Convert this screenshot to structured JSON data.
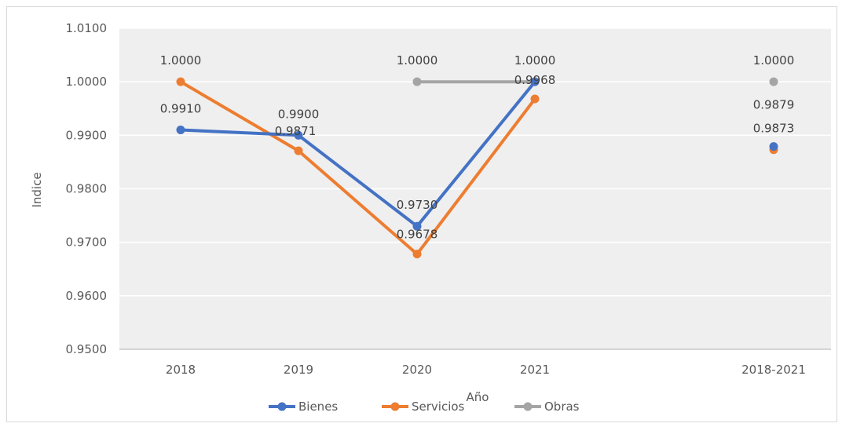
{
  "chart_data": {
    "type": "line",
    "title": "",
    "xlabel": "Año",
    "ylabel": "Indice",
    "ylim": [
      0.95,
      1.01
    ],
    "y_tick_step": 0.01,
    "y_tick_labels": [
      "0.9500",
      "0.9600",
      "0.9700",
      "0.9800",
      "0.9900",
      "1.0000",
      "1.0100"
    ],
    "categories": [
      "2018",
      "2019",
      "2020",
      "2021",
      "2018-2021"
    ],
    "grid": true,
    "legend_position": "bottom",
    "series": [
      {
        "name": "Bienes",
        "color": "#4472C4",
        "values": [
          0.991,
          0.99,
          0.973,
          1.0,
          0.9879
        ],
        "labels": [
          "0.9910",
          "0.9900",
          "0.9730",
          "1.0000",
          "0.9879"
        ],
        "connected": [
          true,
          true,
          true,
          true,
          false
        ]
      },
      {
        "name": "Servicios",
        "color": "#ED7D31",
        "values": [
          1.0,
          0.9871,
          0.9678,
          0.9968,
          0.9873
        ],
        "labels": [
          "1.0000",
          "0.9871",
          "0.9678",
          "0.9968",
          "0.9873"
        ],
        "connected": [
          true,
          true,
          true,
          true,
          false
        ]
      },
      {
        "name": "Obras",
        "color": "#A5A5A5",
        "values": [
          null,
          null,
          1.0,
          1.0,
          1.0
        ],
        "labels": [
          null,
          null,
          "1.0000",
          null,
          "1.0000"
        ],
        "connected": [
          false,
          false,
          true,
          true,
          false
        ]
      }
    ]
  }
}
